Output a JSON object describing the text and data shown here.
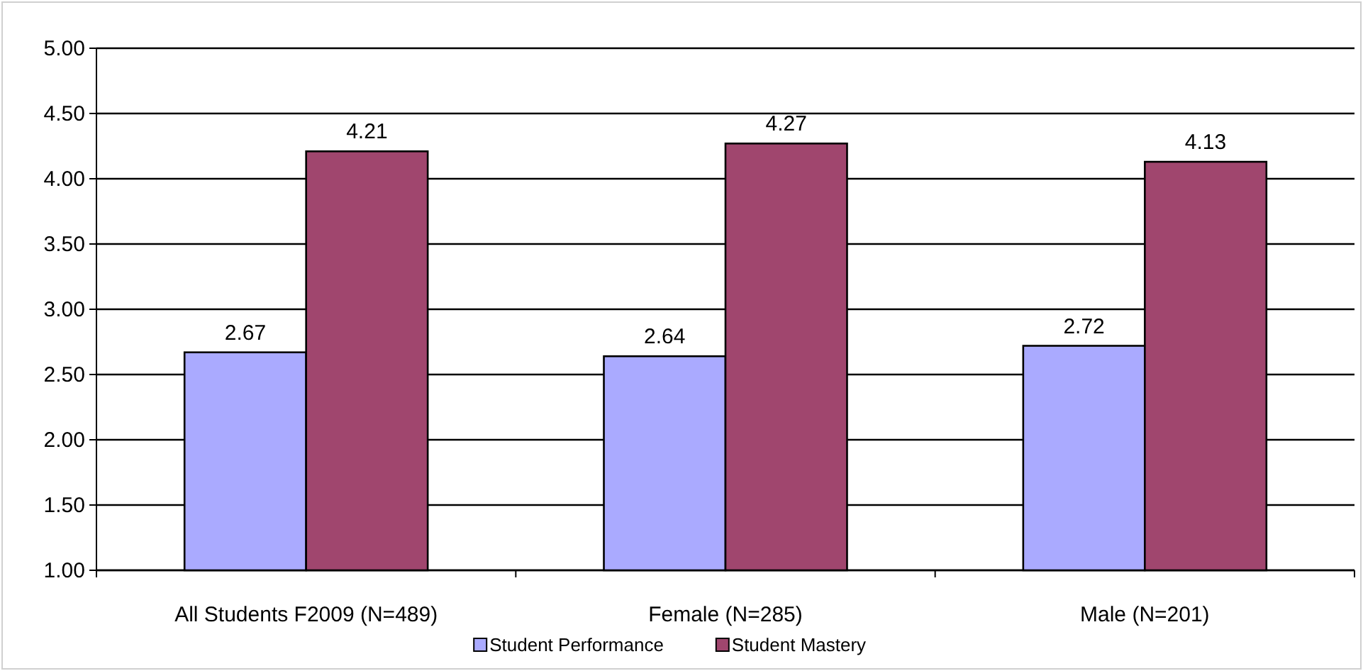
{
  "chart_data": {
    "type": "bar",
    "categories": [
      "All Students F2009 (N=489)",
      "Female (N=285)",
      "Male (N=201)"
    ],
    "series": [
      {
        "name": "Student Performance",
        "color": "#aaaaff",
        "values": [
          2.67,
          2.64,
          2.72
        ]
      },
      {
        "name": "Student Mastery",
        "color": "#a0466e",
        "values": [
          4.21,
          4.27,
          4.13
        ]
      }
    ],
    "ylim": [
      1,
      5
    ],
    "yticks": [
      "1.00",
      "1.50",
      "2.00",
      "2.50",
      "3.00",
      "3.50",
      "4.00",
      "4.50",
      "5.00"
    ],
    "grid": "y",
    "legend": "bottom",
    "data_labels": true
  }
}
